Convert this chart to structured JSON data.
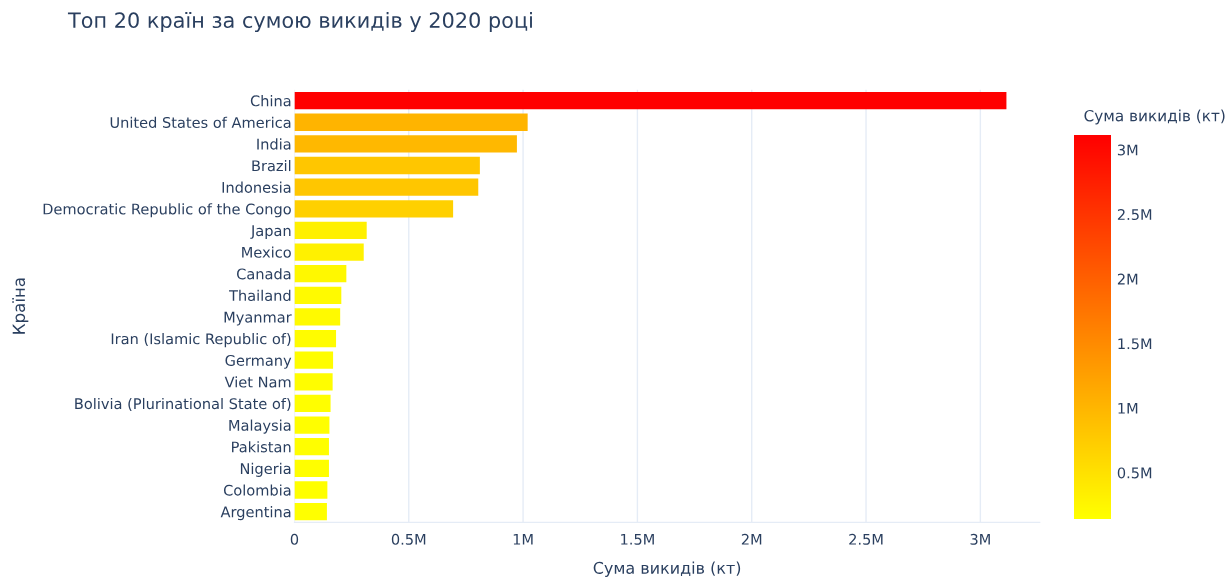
{
  "chart_data": {
    "type": "bar",
    "orientation": "horizontal",
    "title": "Топ 20 країн за сумою викидів у 2020 році",
    "xlabel": "Сума викидів (кт)",
    "ylabel": "Країна",
    "clabel": "Сума викидів (кт)",
    "categories": [
      "China",
      "United States of America",
      "India",
      "Brazil",
      "Indonesia",
      "Democratic Republic of the Congo",
      "Japan",
      "Mexico",
      "Canada",
      "Thailand",
      "Myanmar",
      "Iran (Islamic Republic of)",
      "Germany",
      "Viet Nam",
      "Bolivia (Plurinational State of)",
      "Malaysia",
      "Pakistan",
      "Nigeria",
      "Colombia",
      "Argentina"
    ],
    "values": [
      3114000,
      1020000,
      973000,
      811000,
      804000,
      694000,
      316000,
      303000,
      227000,
      205000,
      200000,
      182000,
      169000,
      167000,
      158000,
      153000,
      151000,
      151000,
      144000,
      142000
    ],
    "colors": [
      "#ff0000",
      "#ffb400",
      "#ffb800",
      "#ffc600",
      "#ffc600",
      "#ffd000",
      "#fff000",
      "#fff100",
      "#fff800",
      "#fffa00",
      "#fffa00",
      "#fffc00",
      "#fffd00",
      "#fffd00",
      "#fffe00",
      "#fffe00",
      "#fffe00",
      "#fffe00",
      "#ffff00",
      "#ffff00"
    ],
    "xlim": [
      0,
      3260000
    ],
    "xticks": [
      {
        "value": 0,
        "label": "0"
      },
      {
        "value": 500000,
        "label": "0.5M"
      },
      {
        "value": 1000000,
        "label": "1M"
      },
      {
        "value": 1500000,
        "label": "1.5M"
      },
      {
        "value": 2000000,
        "label": "2M"
      },
      {
        "value": 2500000,
        "label": "2.5M"
      },
      {
        "value": 3000000,
        "label": "3M"
      }
    ],
    "clim": [
      142000,
      3114000
    ],
    "cticks": [
      {
        "value": 500000,
        "label": "0.5M"
      },
      {
        "value": 1000000,
        "label": "1M"
      },
      {
        "value": 1500000,
        "label": "1.5M"
      },
      {
        "value": 2000000,
        "label": "2M"
      },
      {
        "value": 2500000,
        "label": "2.5M"
      },
      {
        "value": 3000000,
        "label": "3M"
      }
    ],
    "grid": "x",
    "legend": false
  }
}
